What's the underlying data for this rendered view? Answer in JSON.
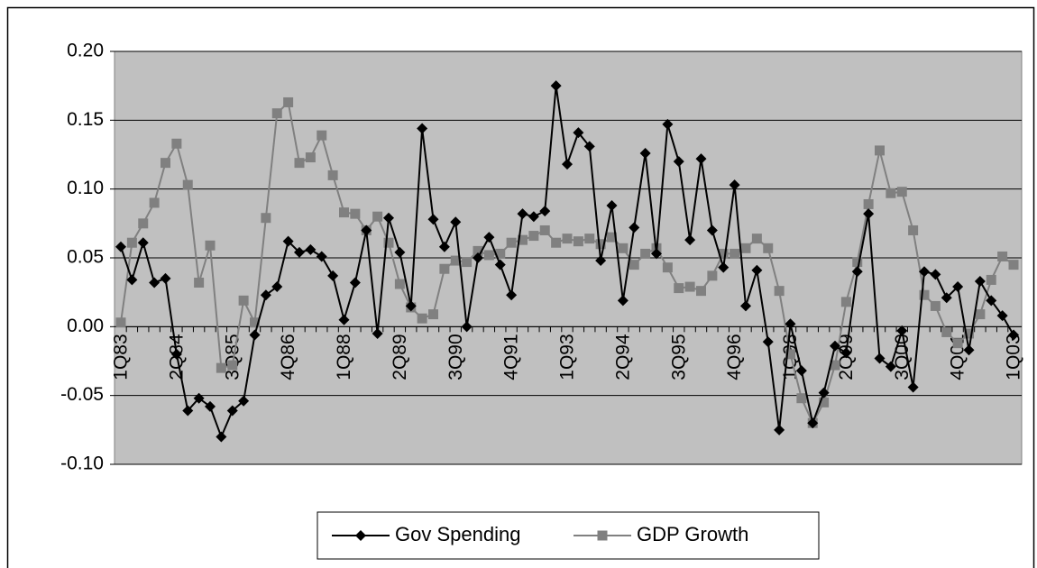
{
  "chart_data": {
    "type": "line",
    "categories": [
      "1Q83",
      null,
      null,
      null,
      null,
      "2Q84",
      null,
      null,
      null,
      null,
      "3Q85",
      null,
      null,
      null,
      null,
      "4Q86",
      null,
      null,
      null,
      null,
      "1Q88",
      null,
      null,
      null,
      null,
      "2Q89",
      null,
      null,
      null,
      null,
      "3Q90",
      null,
      null,
      null,
      null,
      "4Q91",
      null,
      null,
      null,
      null,
      "1Q93",
      null,
      null,
      null,
      null,
      "2Q94",
      null,
      null,
      null,
      null,
      "3Q95",
      null,
      null,
      null,
      null,
      "4Q96",
      null,
      null,
      null,
      null,
      "1Q98",
      null,
      null,
      null,
      null,
      "2Q99",
      null,
      null,
      null,
      null,
      "3Q00",
      null,
      null,
      null,
      null,
      "4Q01",
      null,
      null,
      null,
      null,
      "1Q03"
    ],
    "series": [
      {
        "name": "Gov Spending",
        "color": "#000000",
        "marker": "diamond",
        "values": [
          0.058,
          0.034,
          0.061,
          0.032,
          0.035,
          -0.02,
          -0.061,
          -0.052,
          -0.058,
          -0.08,
          -0.061,
          -0.054,
          -0.006,
          0.023,
          0.029,
          0.062,
          0.054,
          0.056,
          0.051,
          0.037,
          0.005,
          0.032,
          0.07,
          -0.005,
          0.079,
          0.054,
          0.015,
          0.144,
          0.078,
          0.058,
          0.076,
          0.0,
          0.05,
          0.065,
          0.045,
          0.023,
          0.082,
          0.08,
          0.084,
          0.175,
          0.118,
          0.141,
          0.131,
          0.048,
          0.088,
          0.019,
          0.072,
          0.126,
          0.053,
          0.147,
          0.12,
          0.063,
          0.122,
          0.07,
          0.043,
          0.103,
          0.015,
          0.041,
          -0.011,
          -0.075,
          0.002,
          -0.032,
          -0.07,
          -0.048,
          -0.014,
          -0.019,
          0.04,
          0.082,
          -0.023,
          -0.029,
          -0.003,
          -0.044,
          0.04,
          0.038,
          0.021,
          0.029,
          -0.017,
          0.033,
          0.019,
          0.008,
          -0.006
        ]
      },
      {
        "name": "GDP Growth",
        "color": "#808080",
        "marker": "square",
        "values": [
          0.003,
          0.061,
          0.075,
          0.09,
          0.119,
          0.133,
          0.103,
          0.032,
          0.059,
          -0.03,
          -0.028,
          0.019,
          0.003,
          0.079,
          0.155,
          0.163,
          0.119,
          0.123,
          0.139,
          0.11,
          0.083,
          0.082,
          0.07,
          0.08,
          0.061,
          0.031,
          0.014,
          0.006,
          0.009,
          0.042,
          0.048,
          0.047,
          0.055,
          0.052,
          0.053,
          0.061,
          0.063,
          0.066,
          0.07,
          0.061,
          0.064,
          0.062,
          0.064,
          0.06,
          0.065,
          0.057,
          0.045,
          0.053,
          0.057,
          0.043,
          0.028,
          0.029,
          0.026,
          0.037,
          0.053,
          0.053,
          0.057,
          0.064,
          0.057,
          0.026,
          -0.02,
          -0.052,
          -0.07,
          -0.055,
          -0.028,
          0.018,
          0.047,
          0.089,
          0.128,
          0.097,
          0.098,
          0.07,
          0.023,
          0.015,
          -0.004,
          -0.012,
          -0.005,
          0.009,
          0.034,
          0.051,
          0.045
        ]
      }
    ],
    "ylim": [
      -0.1,
      0.2
    ],
    "yticks": [
      {
        "value": -0.1,
        "label": "-0.10"
      },
      -0.05,
      {
        "value": 0,
        "label": "0.00"
      },
      0.05,
      {
        "value": 0.1,
        "label": "0.10"
      },
      0.15,
      {
        "value": 0.2,
        "label": "0.20"
      }
    ],
    "grid": true,
    "plot_background": "#c0c0c0",
    "legend": "bottom"
  }
}
